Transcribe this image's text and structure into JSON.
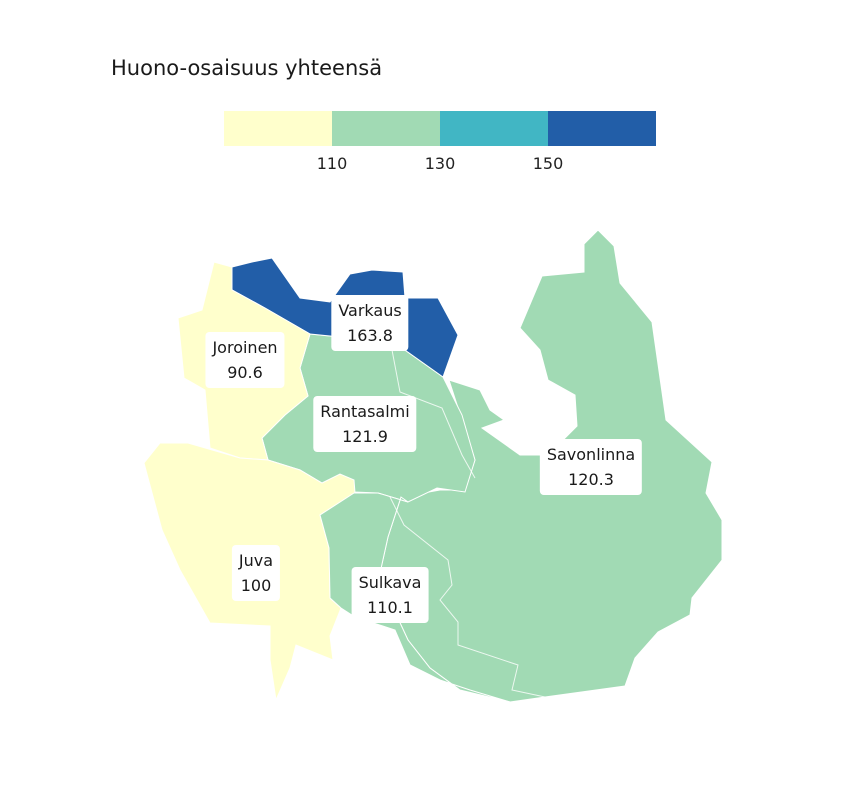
{
  "title": "Huono-osaisuus yhteensä",
  "legend": {
    "colors": [
      "#ffffcc",
      "#a1dab4",
      "#41b6c4",
      "#225ea8"
    ],
    "ticks": [
      "110",
      "130",
      "150"
    ]
  },
  "regions": [
    {
      "name": "Joroinen",
      "value": "90.6",
      "color": "#ffffcc"
    },
    {
      "name": "Varkaus",
      "value": "163.8",
      "color": "#225ea8"
    },
    {
      "name": "Rantasalmi",
      "value": "121.9",
      "color": "#a1dab4"
    },
    {
      "name": "Savonlinna",
      "value": "120.3",
      "color": "#a1dab4"
    },
    {
      "name": "Juva",
      "value": "100",
      "color": "#ffffcc"
    },
    {
      "name": "Sulkava",
      "value": "110.1",
      "color": "#a1dab4"
    }
  ]
}
